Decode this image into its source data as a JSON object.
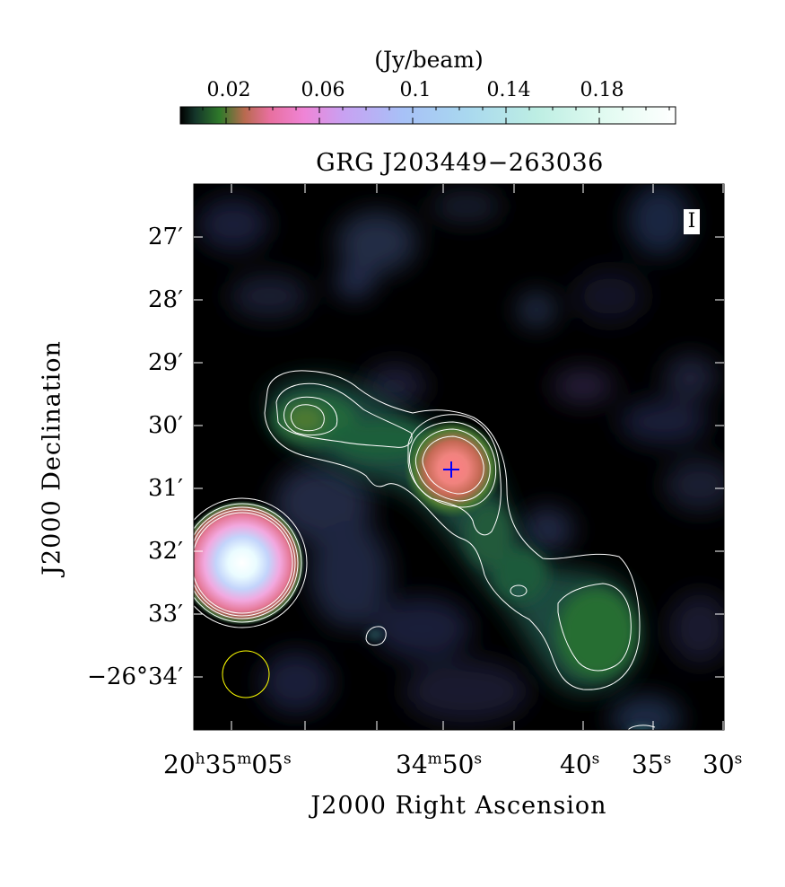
{
  "colorbar": {
    "unit_label": "(Jy/beam)",
    "tick_labels": [
      "0.02",
      "0.06",
      "0.1",
      "0.14",
      "0.18"
    ],
    "range": [
      0.0,
      0.21
    ],
    "colormap": [
      "#000000",
      "#1a4a2a",
      "#2e7a2c",
      "#d26a6a",
      "#f07ac8",
      "#c7a0ef",
      "#a9c4f6",
      "#b7ecea",
      "#e6fbf3",
      "#ffffff"
    ]
  },
  "image": {
    "title": "GRG J203449−263036",
    "stokes_label": "I",
    "y_axis_label": "J2000 Declination",
    "x_axis_label": "J2000 Right Ascension",
    "y_tick_labels": [
      "27′",
      "28′",
      "29′",
      "30′",
      "31′",
      "32′",
      "33′",
      "−26°34′"
    ],
    "x_tick_labels": [
      {
        "main": "20",
        "h": "h",
        "mid": "35",
        "m": "m",
        "end": "05",
        "s": "s"
      },
      {
        "main": "34",
        "m": "m",
        "mid": "50",
        "s": "s"
      },
      {
        "main": "40",
        "s": "s"
      },
      {
        "main": "35",
        "s": "s"
      },
      {
        "main": "30",
        "s": "s"
      }
    ],
    "colors": {
      "contour": "#ffffff",
      "core_marker": "#0000ff",
      "beam": "#ffff00"
    }
  }
}
